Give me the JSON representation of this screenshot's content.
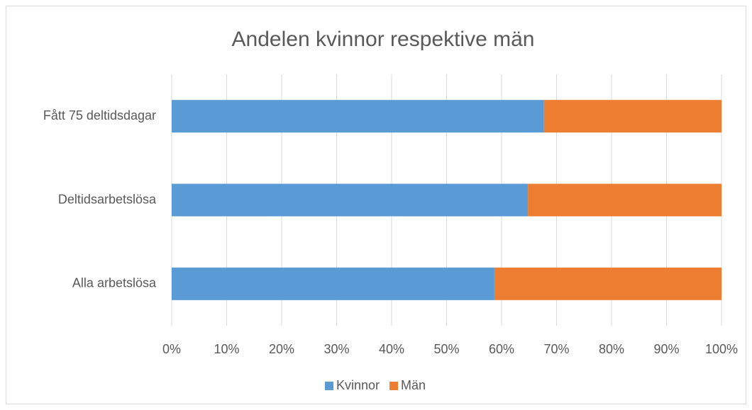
{
  "chart_data": {
    "type": "bar",
    "orientation": "horizontal",
    "stacked": true,
    "title": "Andelen kvinnor respektive män",
    "categories": [
      "Fått 75 deltidsdagar",
      "Deltidsarbetslösa",
      "Alla arbetslösa"
    ],
    "series": [
      {
        "name": "Kvinnor",
        "color": "#5b9bd5",
        "values": [
          67.7,
          64.8,
          58.7
        ]
      },
      {
        "name": "Män",
        "color": "#ed7d31",
        "values": [
          32.3,
          35.2,
          41.3
        ]
      }
    ],
    "xlim": [
      0,
      100
    ],
    "xticks": [
      {
        "value": 0,
        "label": "0%"
      },
      {
        "value": 10,
        "label": "10%"
      },
      {
        "value": 20,
        "label": "20%"
      },
      {
        "value": 30,
        "label": "30%"
      },
      {
        "value": 40,
        "label": "40%"
      },
      {
        "value": 50,
        "label": "50%"
      },
      {
        "value": 60,
        "label": "60%"
      },
      {
        "value": 70,
        "label": "70%"
      },
      {
        "value": 80,
        "label": "80%"
      },
      {
        "value": 90,
        "label": "90%"
      },
      {
        "value": 100,
        "label": "100%"
      }
    ],
    "grid": true,
    "legend": "bottom"
  }
}
